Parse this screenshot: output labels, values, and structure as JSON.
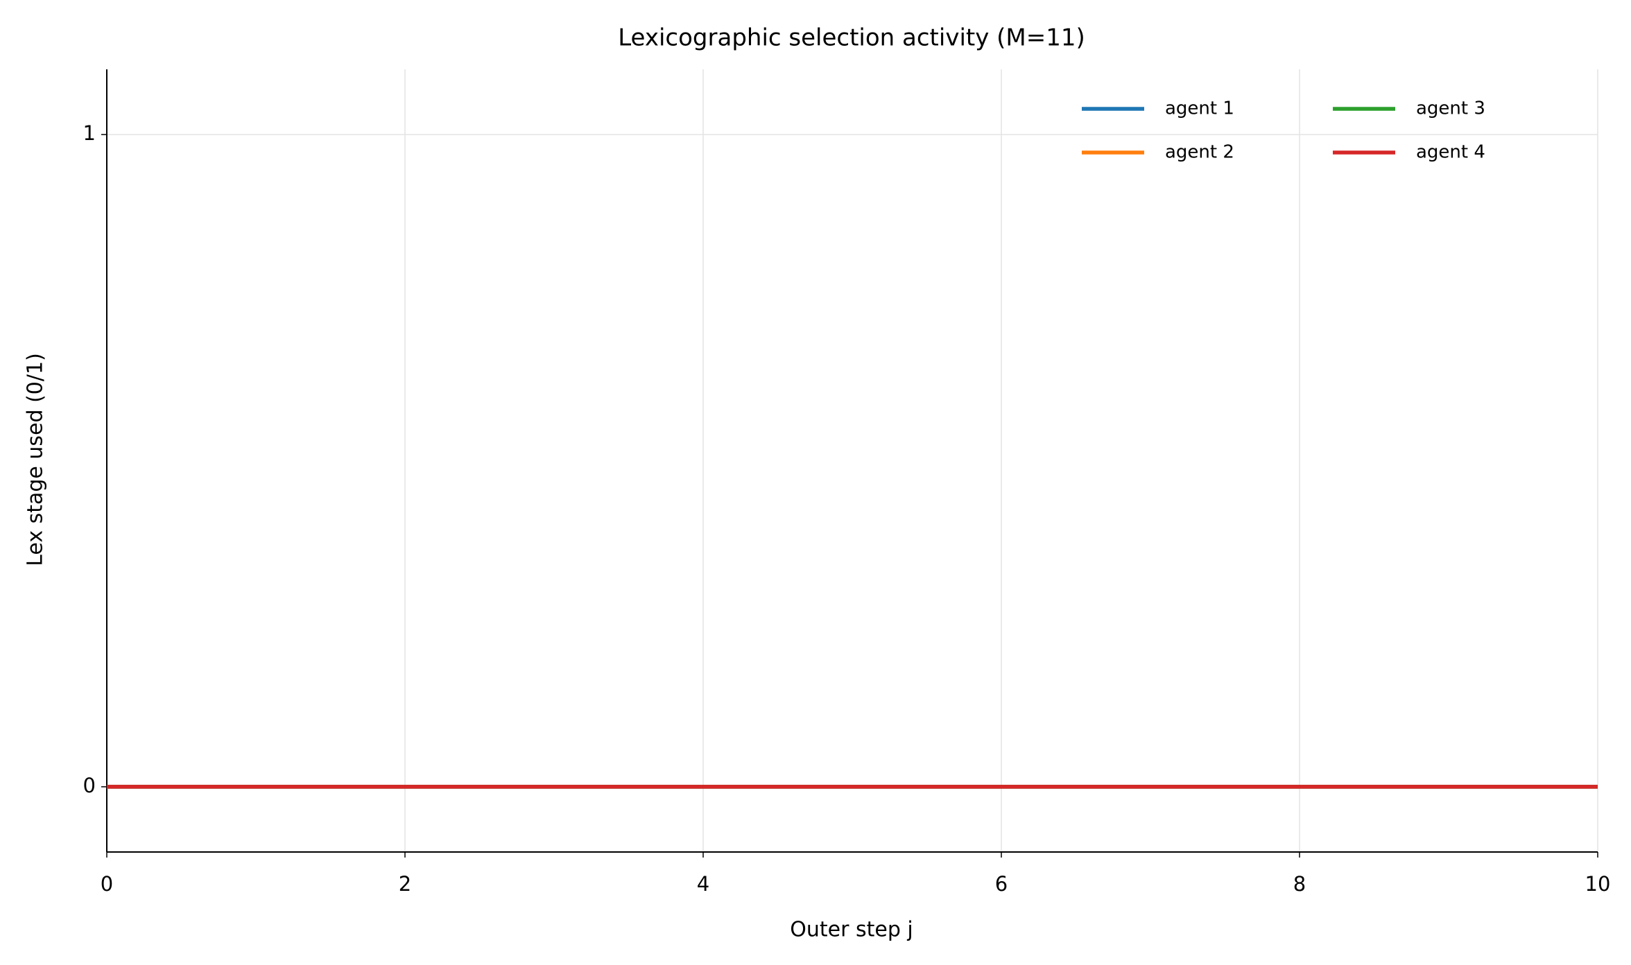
{
  "chart_data": {
    "type": "line",
    "title": "Lexicographic selection activity (M=11)",
    "xlabel": "Outer step j",
    "ylabel": "Lex stage used (0/1)",
    "x": [
      0,
      1,
      2,
      3,
      4,
      5,
      6,
      7,
      8,
      9,
      10
    ],
    "series": [
      {
        "name": "agent 1",
        "color": "#1f77b4",
        "values": [
          0,
          0,
          0,
          0,
          0,
          0,
          0,
          0,
          0,
          0,
          0
        ]
      },
      {
        "name": "agent 2",
        "color": "#ff7f0e",
        "values": [
          0,
          0,
          0,
          0,
          0,
          0,
          0,
          0,
          0,
          0,
          0
        ]
      },
      {
        "name": "agent 3",
        "color": "#2ca02c",
        "values": [
          0,
          0,
          0,
          0,
          0,
          0,
          0,
          0,
          0,
          0,
          0
        ]
      },
      {
        "name": "agent 4",
        "color": "#d62728",
        "values": [
          0,
          0,
          0,
          0,
          0,
          0,
          0,
          0,
          0,
          0,
          0
        ]
      }
    ],
    "xlim": [
      0,
      10
    ],
    "xticks": [
      0,
      2,
      4,
      6,
      8,
      10
    ],
    "ylim": [
      -0.1,
      1.1
    ],
    "yticks": [
      0,
      1
    ],
    "grid": true,
    "legend": "upper right",
    "legend_columns": 2
  }
}
